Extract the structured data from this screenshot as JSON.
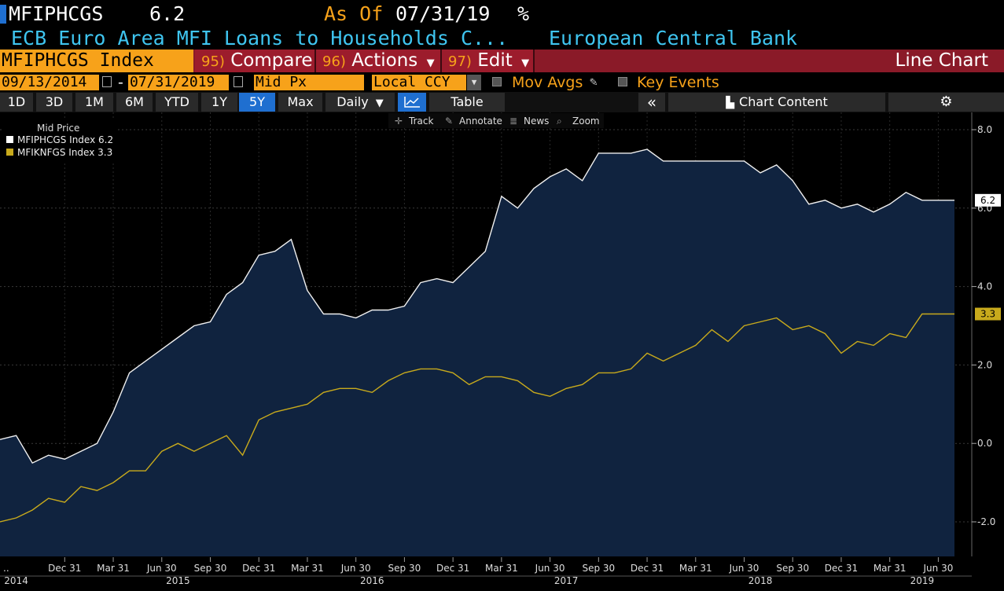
{
  "header": {
    "ticker": "MFIPHCGS",
    "last_value": "6.2",
    "as_of_label": "As Of",
    "as_of_date": "07/31/19",
    "unit": "%",
    "description": "ECB Euro Area MFI Loans to Households C...",
    "source": "European Central Bank"
  },
  "command_bar": {
    "security": "MFIPHCGS Index",
    "compare_num": "95)",
    "compare_label": "Compare",
    "actions_num": "96)",
    "actions_label": "Actions",
    "edit_num": "97)",
    "edit_label": "Edit",
    "chart_type": "Line Chart"
  },
  "options": {
    "start_date": "09/13/2014",
    "dash": "-",
    "end_date": "07/31/2019",
    "field": "Mid Px",
    "currency": "Local CCY",
    "mov_avgs": "Mov Avgs",
    "key_events": "Key Events"
  },
  "toolbar": {
    "periods": [
      "1D",
      "3D",
      "1M",
      "6M",
      "YTD",
      "1Y",
      "5Y",
      "Max"
    ],
    "selected_period": "5Y",
    "frequency": "Daily",
    "table": "Table",
    "chart_content": "Chart Content"
  },
  "chart_tools": {
    "track": "Track",
    "annotate": "Annotate",
    "news": "News",
    "zoom": "Zoom"
  },
  "colors": {
    "accent_orange": "#f7a21a",
    "title_cyan": "#3fc5f0",
    "bar_red": "#8a1a28",
    "area_fill": "#10233f",
    "series2": "#c8aa1c"
  },
  "chart_data": {
    "type": "area",
    "legend_title": "Mid Price",
    "legend_position": "top-left",
    "x": [
      "2014-08",
      "2014-09",
      "2014-10",
      "2014-11",
      "2014-12",
      "2015-01",
      "2015-02",
      "2015-03",
      "2015-04",
      "2015-05",
      "2015-06",
      "2015-07",
      "2015-08",
      "2015-09",
      "2015-10",
      "2015-11",
      "2015-12",
      "2016-01",
      "2016-02",
      "2016-03",
      "2016-04",
      "2016-05",
      "2016-06",
      "2016-07",
      "2016-08",
      "2016-09",
      "2016-10",
      "2016-11",
      "2016-12",
      "2017-01",
      "2017-02",
      "2017-03",
      "2017-04",
      "2017-05",
      "2017-06",
      "2017-07",
      "2017-08",
      "2017-09",
      "2017-10",
      "2017-11",
      "2017-12",
      "2018-01",
      "2018-02",
      "2018-03",
      "2018-04",
      "2018-05",
      "2018-06",
      "2018-07",
      "2018-08",
      "2018-09",
      "2018-10",
      "2018-11",
      "2018-12",
      "2019-01",
      "2019-02",
      "2019-03",
      "2019-04",
      "2019-05",
      "2019-06",
      "2019-07"
    ],
    "series": [
      {
        "name": "MFIPHCGS Index",
        "last_label": "6.2",
        "values": [
          0.1,
          0.2,
          -0.5,
          -0.3,
          -0.4,
          -0.2,
          0.0,
          0.8,
          1.8,
          2.1,
          2.4,
          2.7,
          3.0,
          3.1,
          3.8,
          4.1,
          4.8,
          4.9,
          5.2,
          3.9,
          3.3,
          3.3,
          3.2,
          3.4,
          3.4,
          3.5,
          4.1,
          4.2,
          4.1,
          4.5,
          4.9,
          6.3,
          6.0,
          6.5,
          6.8,
          7.0,
          6.7,
          7.4,
          7.4,
          7.4,
          7.5,
          7.2,
          7.2,
          7.2,
          7.2,
          7.2,
          7.2,
          6.9,
          7.1,
          6.7,
          6.1,
          6.2,
          6.0,
          6.1,
          5.9,
          6.1,
          6.4,
          6.2,
          6.2,
          6.2
        ]
      },
      {
        "name": "MFIKNFGS Index",
        "last_label": "3.3",
        "values": [
          -2.0,
          -1.9,
          -1.7,
          -1.4,
          -1.5,
          -1.1,
          -1.2,
          -1.0,
          -0.7,
          -0.7,
          -0.2,
          0.0,
          -0.2,
          0.0,
          0.2,
          -0.3,
          0.6,
          0.8,
          0.9,
          1.0,
          1.3,
          1.4,
          1.4,
          1.3,
          1.6,
          1.8,
          1.9,
          1.9,
          1.8,
          1.5,
          1.7,
          1.7,
          1.6,
          1.3,
          1.2,
          1.4,
          1.5,
          1.8,
          1.8,
          1.9,
          2.3,
          2.1,
          2.3,
          2.5,
          2.9,
          2.6,
          3.0,
          3.1,
          3.2,
          2.9,
          3.0,
          2.8,
          2.3,
          2.6,
          2.5,
          2.8,
          2.7,
          3.3,
          3.3,
          3.3
        ]
      }
    ],
    "ylim": [
      -2.4,
      8.2
    ],
    "y_ticks": [
      8.0,
      6.0,
      4.0,
      2.0,
      0.0,
      -2.0
    ],
    "y_tick_labels": [
      "8.0",
      "6.0",
      "4.0",
      "2.0",
      "0.0",
      "-2.0"
    ],
    "x_tick_labels": [
      "Dec 31",
      "Mar 31",
      "Jun 30",
      "Sep 30",
      "Dec 31",
      "Mar 31",
      "Jun 30",
      "Sep 30",
      "Dec 31",
      "Mar 31",
      "Jun 30",
      "Sep 30",
      "Dec 31",
      "Mar 31",
      "Jun 30",
      "Sep 30",
      "Dec 31",
      "Mar 31",
      "Jun 30"
    ],
    "x_tick_indices": [
      4,
      7,
      10,
      13,
      16,
      19,
      22,
      25,
      28,
      31,
      34,
      37,
      40,
      43,
      46,
      49,
      52,
      55,
      58
    ],
    "year_labels": [
      "2014",
      "2015",
      "2016",
      "2017",
      "2018",
      "2019"
    ],
    "year_indices": [
      1,
      11,
      23,
      35,
      47,
      57
    ],
    "grid": true
  }
}
